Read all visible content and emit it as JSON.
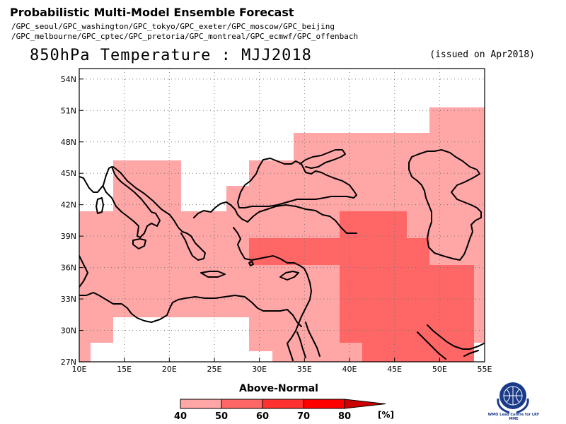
{
  "header": {
    "title": "Probabilistic Multi-Model Ensemble Forecast",
    "centers_line1": "/GPC_seoul/GPC_washington/GPC_tokyo/GPC_exeter/GPC_moscow/GPC_beijing",
    "centers_line2": "/GPC_melbourne/GPC_cptec/GPC_pretoria/GPC_montreal/GPC_ecmwf/GPC_offenbach",
    "subtitle": "850hPa Temperature : MJJ2018",
    "issued": "(issued on Apr2018)"
  },
  "map": {
    "lon_min": 10,
    "lon_max": 55,
    "lat_min": 27,
    "lat_max": 55,
    "x_ticks": [
      "10E",
      "15E",
      "20E",
      "25E",
      "30E",
      "35E",
      "40E",
      "45E",
      "50E",
      "55E"
    ],
    "y_ticks": [
      "27N",
      "30N",
      "33N",
      "36N",
      "39N",
      "42N",
      "45N",
      "48N",
      "51N",
      "54N"
    ],
    "colors": {
      "c40": "#ffa6a6",
      "c50": "#ff6666",
      "c60": "#ff3030",
      "c70": "#ff0000",
      "c80": "#cc0000"
    }
  },
  "legend": {
    "title": "Above-Normal",
    "labels": [
      "40",
      "50",
      "60",
      "70",
      "80"
    ],
    "unit": "[%]"
  },
  "logo": {
    "text": "WMO Lead Centre for LRF MME"
  }
}
